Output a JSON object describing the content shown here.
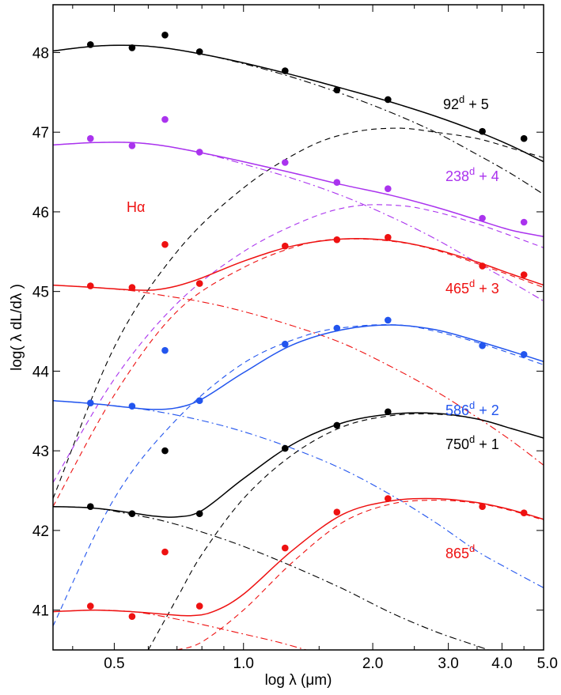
{
  "chart_data": {
    "type": "line",
    "title": "",
    "xlabel": "log λ (μm)",
    "ylabel": "log( λ dL/dλ )",
    "xscale": "log",
    "xlim": [
      0.36,
      5.0
    ],
    "ylim": [
      40.5,
      48.6
    ],
    "x_ticks": [
      0.5,
      1.0,
      2.0,
      3.0,
      4.0,
      5.0
    ],
    "x_tick_labels": [
      "0.5",
      "1.0",
      "2.0",
      "3.0",
      "4.0",
      "5.0"
    ],
    "y_ticks": [
      41,
      42,
      43,
      44,
      45,
      46,
      47,
      48
    ],
    "y_tick_labels": [
      "41",
      "42",
      "43",
      "44",
      "45",
      "46",
      "47",
      "48"
    ],
    "halpha_label": "Hα",
    "halpha_color": "#ee1111",
    "series": [
      {
        "name": "92d + 5",
        "label_main": "92",
        "label_sup": "d",
        "label_suffix": " + 5",
        "color": "#000000",
        "points": {
          "x": [
            0.44,
            0.55,
            0.6563,
            0.79,
            1.25,
            1.65,
            2.17,
            3.6,
            4.5
          ],
          "y": [
            48.1,
            48.06,
            48.22,
            48.01,
            47.77,
            47.53,
            47.41,
            47.01,
            46.92
          ]
        },
        "total": {
          "x": [
            0.36,
            0.45,
            0.55,
            0.65,
            0.8,
            1.0,
            1.3,
            1.7,
            2.2,
            2.8,
            3.5,
            4.2,
            5.0
          ],
          "y": [
            48.02,
            48.08,
            48.09,
            48.06,
            47.98,
            47.87,
            47.72,
            47.55,
            47.38,
            47.2,
            47.01,
            46.83,
            46.63
          ]
        },
        "dust": {
          "x": [
            0.36,
            0.5,
            0.7,
            1.0,
            1.4,
            1.8,
            2.3,
            2.8,
            3.5,
            4.2,
            5.0
          ],
          "y": [
            42.4,
            44.3,
            45.5,
            46.3,
            46.8,
            47.0,
            47.05,
            47.0,
            46.92,
            46.8,
            46.68
          ]
        },
        "star": {
          "x": [
            0.36,
            0.45,
            0.55,
            0.65,
            0.8,
            1.0,
            1.3,
            1.7,
            2.2,
            2.8,
            3.5,
            4.2,
            5.0
          ],
          "y": [
            48.02,
            48.08,
            48.09,
            48.06,
            47.98,
            47.86,
            47.69,
            47.48,
            47.25,
            47.0,
            46.72,
            46.48,
            46.22
          ]
        }
      },
      {
        "name": "238d + 4",
        "label_main": "238",
        "label_sup": "d",
        "label_suffix": " + 4",
        "color": "#aa33ee",
        "points": {
          "x": [
            0.44,
            0.55,
            0.6563,
            0.79,
            1.25,
            1.65,
            2.17,
            3.6,
            4.5
          ],
          "y": [
            46.92,
            46.83,
            47.16,
            46.75,
            46.62,
            46.37,
            46.29,
            45.92,
            45.87
          ]
        },
        "total": {
          "x": [
            0.36,
            0.45,
            0.55,
            0.65,
            0.8,
            1.0,
            1.3,
            1.7,
            2.2,
            2.8,
            3.5,
            4.2,
            5.0
          ],
          "y": [
            46.84,
            46.87,
            46.87,
            46.83,
            46.74,
            46.63,
            46.49,
            46.34,
            46.21,
            46.06,
            45.9,
            45.77,
            45.69
          ]
        },
        "dust": {
          "x": [
            0.36,
            0.5,
            0.7,
            1.0,
            1.4,
            1.8,
            2.3,
            2.8,
            3.5,
            4.2,
            5.0
          ],
          "y": [
            42.6,
            43.9,
            44.85,
            45.5,
            45.9,
            46.07,
            46.08,
            46.0,
            45.85,
            45.7,
            45.55
          ]
        },
        "star": {
          "x": [
            0.36,
            0.45,
            0.55,
            0.65,
            0.8,
            1.0,
            1.3,
            1.7,
            2.2,
            2.8,
            3.5,
            4.2,
            5.0
          ],
          "y": [
            46.84,
            46.87,
            46.87,
            46.83,
            46.74,
            46.6,
            46.42,
            46.2,
            45.94,
            45.66,
            45.36,
            45.12,
            44.88
          ]
        }
      },
      {
        "name": "465d + 3",
        "label_main": "465",
        "label_sup": "d",
        "label_suffix": " + 3",
        "color": "#ee1111",
        "points": {
          "x": [
            0.44,
            0.55,
            0.6563,
            0.79,
            1.25,
            1.65,
            2.17,
            3.6,
            4.5
          ],
          "y": [
            45.07,
            45.05,
            45.59,
            45.1,
            45.57,
            45.65,
            45.68,
            45.32,
            45.21
          ]
        },
        "total": {
          "x": [
            0.36,
            0.45,
            0.55,
            0.62,
            0.7,
            0.8,
            1.0,
            1.3,
            1.7,
            2.2,
            2.8,
            3.5,
            4.2,
            5.0
          ],
          "y": [
            45.08,
            45.05,
            45.02,
            45.02,
            45.07,
            45.17,
            45.38,
            45.57,
            45.66,
            45.64,
            45.53,
            45.37,
            45.22,
            45.08
          ]
        },
        "dust": {
          "x": [
            0.36,
            0.5,
            0.7,
            1.0,
            1.4,
            1.8,
            2.3,
            2.8,
            3.5,
            4.2,
            5.0
          ],
          "y": [
            42.3,
            43.7,
            44.75,
            45.3,
            45.6,
            45.66,
            45.62,
            45.52,
            45.35,
            45.2,
            45.05
          ]
        },
        "star": {
          "x": [
            0.36,
            0.45,
            0.55,
            0.65,
            0.8,
            1.0,
            1.3,
            1.7,
            2.2,
            2.8,
            3.5,
            4.2,
            5.0
          ],
          "y": [
            45.08,
            45.05,
            45.01,
            44.95,
            44.87,
            44.75,
            44.57,
            44.35,
            44.06,
            43.75,
            43.42,
            43.13,
            42.82
          ]
        }
      },
      {
        "name": "586d + 2",
        "label_main": "586",
        "label_sup": "d",
        "label_suffix": " + 2",
        "color": "#2255ee",
        "points": {
          "x": [
            0.44,
            0.55,
            0.6563,
            0.79,
            1.25,
            1.65,
            2.17,
            3.6,
            4.5
          ],
          "y": [
            43.6,
            43.56,
            44.26,
            43.63,
            44.34,
            44.54,
            44.64,
            44.32,
            44.21
          ]
        },
        "total": {
          "x": [
            0.36,
            0.45,
            0.55,
            0.62,
            0.7,
            0.8,
            1.0,
            1.3,
            1.7,
            2.2,
            2.8,
            3.5,
            4.2,
            5.0
          ],
          "y": [
            43.63,
            43.59,
            43.54,
            43.52,
            43.54,
            43.65,
            43.98,
            44.33,
            44.52,
            44.58,
            44.52,
            44.38,
            44.25,
            44.12
          ]
        },
        "dust": {
          "x": [
            0.36,
            0.5,
            0.7,
            1.0,
            1.4,
            1.8,
            2.3,
            2.8,
            3.5,
            4.2,
            5.0
          ],
          "y": [
            40.8,
            42.4,
            43.4,
            44.1,
            44.45,
            44.56,
            44.58,
            44.5,
            44.36,
            44.22,
            44.08
          ]
        },
        "star": {
          "x": [
            0.36,
            0.45,
            0.55,
            0.65,
            0.8,
            1.0,
            1.3,
            1.7,
            2.2,
            2.8,
            3.5,
            4.2,
            5.0
          ],
          "y": [
            43.63,
            43.59,
            43.54,
            43.48,
            43.38,
            43.24,
            43.03,
            42.77,
            42.45,
            42.1,
            41.74,
            41.5,
            41.28
          ]
        }
      },
      {
        "name": "750d + 1",
        "label_main": "750",
        "label_sup": "d",
        "label_suffix": " + 1",
        "color": "#000000",
        "points": {
          "x": [
            0.44,
            0.55,
            0.6563,
            0.79,
            1.25,
            1.65,
            2.17,
            3.6,
            4.5
          ],
          "y": [
            42.3,
            42.21,
            43.0,
            42.21,
            43.03,
            43.32,
            43.49,
            null,
            null
          ]
        },
        "total": {
          "x": [
            0.36,
            0.45,
            0.55,
            0.62,
            0.7,
            0.8,
            1.0,
            1.3,
            1.7,
            2.2,
            2.8,
            3.5,
            4.2,
            5.0
          ],
          "y": [
            42.3,
            42.28,
            42.22,
            42.18,
            42.17,
            42.25,
            42.65,
            43.08,
            43.35,
            43.46,
            43.47,
            43.4,
            43.28,
            43.16
          ]
        },
        "dust": {
          "x": [
            0.6,
            0.7,
            0.8,
            1.0,
            1.3,
            1.7,
            2.2,
            2.8,
            3.5,
            4.2,
            5.0
          ],
          "y": [
            40.5,
            41.15,
            41.7,
            42.4,
            42.95,
            43.3,
            43.44,
            43.46,
            43.4,
            43.28,
            43.16
          ]
        },
        "star": {
          "x": [
            0.36,
            0.45,
            0.55,
            0.65,
            0.8,
            1.0,
            1.3,
            1.7,
            2.2,
            2.8,
            3.5,
            4.2
          ],
          "y": [
            42.3,
            42.28,
            42.2,
            42.12,
            41.98,
            41.8,
            41.55,
            41.27,
            40.97,
            40.73,
            40.55,
            40.4
          ]
        }
      },
      {
        "name": "865d",
        "label_main": "865",
        "label_sup": "d",
        "label_suffix": "",
        "color": "#ee1111",
        "points": {
          "x": [
            0.44,
            0.55,
            0.6563,
            0.79,
            1.25,
            1.65,
            2.17,
            3.6,
            4.5
          ],
          "y": [
            41.05,
            40.92,
            41.73,
            41.05,
            41.78,
            42.23,
            42.4,
            42.3,
            42.22
          ]
        },
        "total": {
          "x": [
            0.36,
            0.45,
            0.55,
            0.65,
            0.75,
            0.85,
            1.0,
            1.3,
            1.7,
            2.2,
            2.8,
            3.5,
            4.2,
            5.0
          ],
          "y": [
            40.98,
            41.0,
            40.98,
            40.95,
            40.93,
            40.98,
            41.2,
            41.75,
            42.2,
            42.37,
            42.4,
            42.35,
            42.26,
            42.14
          ]
        },
        "dust": {
          "x": [
            0.7,
            0.8,
            1.0,
            1.3,
            1.7,
            2.2,
            2.8,
            3.5,
            4.2,
            5.0
          ],
          "y": [
            40.5,
            40.6,
            41.0,
            41.6,
            42.1,
            42.33,
            42.38,
            42.34,
            42.25,
            42.13
          ]
        },
        "star": {
          "x": [
            0.36,
            0.45,
            0.55,
            0.65,
            0.8,
            1.0,
            1.2,
            1.4
          ],
          "y": [
            40.98,
            41.0,
            40.98,
            40.92,
            40.82,
            40.7,
            40.6,
            40.5
          ]
        }
      }
    ]
  }
}
